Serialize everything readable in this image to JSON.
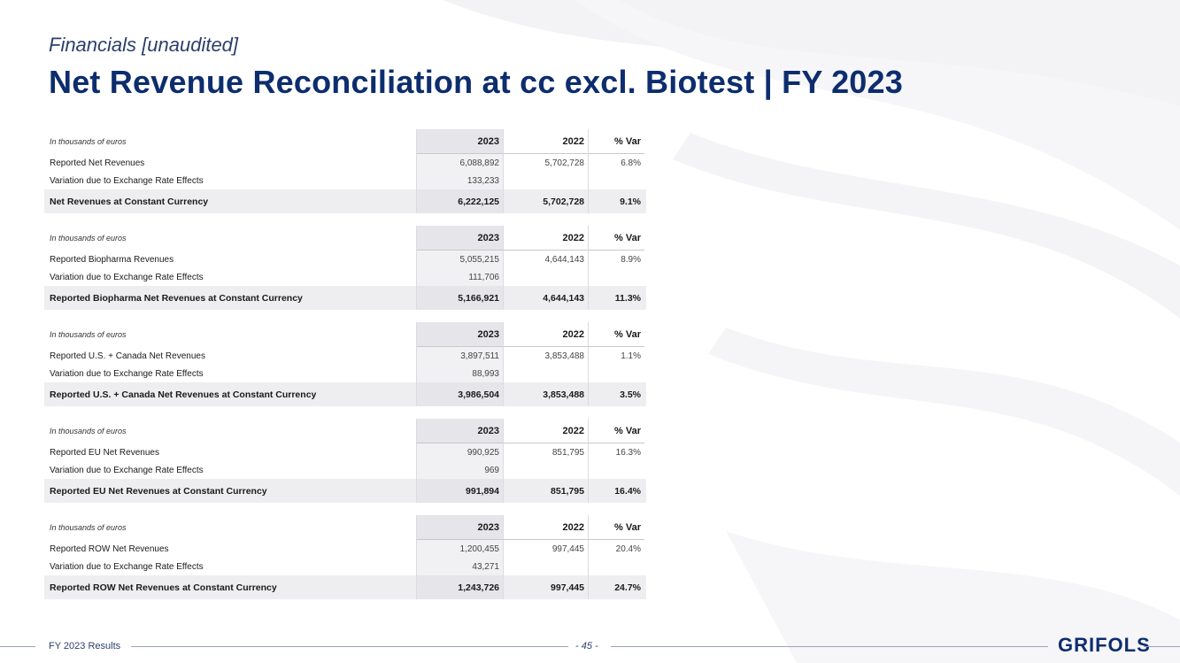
{
  "header": {
    "subtitle": "Financials [unaudited]",
    "title": "Net Revenue Reconciliation at cc excl. Biotest | FY 2023"
  },
  "tables": [
    {
      "unit_label": "In thousands of euros",
      "col_2023": "2023",
      "col_2022": "2022",
      "col_var": "% Var",
      "rows": [
        {
          "label": "Reported Net Revenues",
          "v2023": "6,088,892",
          "v2022": "5,702,728",
          "var": "6.8%"
        },
        {
          "label": "Variation due to Exchange Rate Effects",
          "v2023": "133,233",
          "v2022": "",
          "var": ""
        }
      ],
      "total": {
        "label": "Net Revenues at Constant Currency",
        "v2023": "6,222,125",
        "v2022": "5,702,728",
        "var": "9.1%"
      }
    },
    {
      "unit_label": "In thousands of euros",
      "col_2023": "2023",
      "col_2022": "2022",
      "col_var": "% Var",
      "rows": [
        {
          "label": "Reported Biopharma Revenues",
          "v2023": "5,055,215",
          "v2022": "4,644,143",
          "var": "8.9%"
        },
        {
          "label": "Variation due to Exchange Rate Effects",
          "v2023": "111,706",
          "v2022": "",
          "var": ""
        }
      ],
      "total": {
        "label": "Reported Biopharma Net Revenues at Constant Currency",
        "v2023": "5,166,921",
        "v2022": "4,644,143",
        "var": "11.3%"
      }
    },
    {
      "unit_label": "In thousands of euros",
      "col_2023": "2023",
      "col_2022": "2022",
      "col_var": "% Var",
      "rows": [
        {
          "label": "Reported U.S. + Canada Net Revenues",
          "v2023": "3,897,511",
          "v2022": "3,853,488",
          "var": "1.1%"
        },
        {
          "label": "Variation due to Exchange Rate Effects",
          "v2023": "88,993",
          "v2022": "",
          "var": ""
        }
      ],
      "total": {
        "label": "Reported U.S. + Canada Net Revenues at Constant Currency",
        "v2023": "3,986,504",
        "v2022": "3,853,488",
        "var": "3.5%"
      }
    },
    {
      "unit_label": "In thousands of euros",
      "col_2023": "2023",
      "col_2022": "2022",
      "col_var": "% Var",
      "rows": [
        {
          "label": "Reported EU Net Revenues",
          "v2023": "990,925",
          "v2022": "851,795",
          "var": "16.3%"
        },
        {
          "label": "Variation due to Exchange Rate Effects",
          "v2023": "969",
          "v2022": "",
          "var": ""
        }
      ],
      "total": {
        "label": "Reported EU Net Revenues at Constant Currency",
        "v2023": "991,894",
        "v2022": "851,795",
        "var": "16.4%"
      }
    },
    {
      "unit_label": "In thousands of euros",
      "col_2023": "2023",
      "col_2022": "2022",
      "col_var": "% Var",
      "rows": [
        {
          "label": "Reported ROW Net Revenues",
          "v2023": "1,200,455",
          "v2022": "997,445",
          "var": "20.4%"
        },
        {
          "label": "Variation due to Exchange Rate Effects",
          "v2023": "43,271",
          "v2022": "",
          "var": ""
        }
      ],
      "total": {
        "label": "Reported ROW Net Revenues at Constant Currency",
        "v2023": "1,243,726",
        "v2022": "997,445",
        "var": "24.7%"
      }
    }
  ],
  "footer": {
    "left_text": "FY 2023 Results",
    "page": "- 45 -",
    "logo_text": "GRIFOLS"
  },
  "colors": {
    "title": "#0d2d6e",
    "total_row_bg": "#eeeef1",
    "footer_line": "#9aa3b6"
  }
}
